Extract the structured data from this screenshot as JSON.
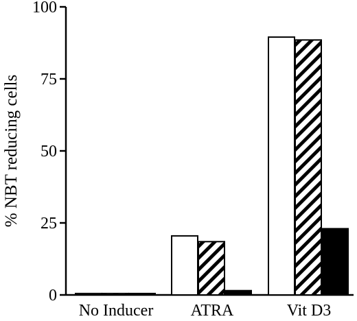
{
  "chart_data": {
    "type": "bar",
    "title": "",
    "xlabel": "",
    "ylabel": "% NBT reducing cells",
    "ylim": [
      0,
      100
    ],
    "yticks": [
      0,
      25,
      50,
      75,
      100
    ],
    "categories": [
      "No Inducer",
      "ATRA",
      "Vit D3"
    ],
    "series": [
      {
        "fill": "open",
        "color": "#ffffff",
        "values": [
          0.5,
          20.5,
          89.5
        ]
      },
      {
        "fill": "hatched",
        "color": "#000000",
        "values": [
          0.5,
          18.5,
          88.5
        ]
      },
      {
        "fill": "solid",
        "color": "#000000",
        "values": [
          0.5,
          1.5,
          23
        ]
      }
    ],
    "legend": "none",
    "grid": false
  }
}
